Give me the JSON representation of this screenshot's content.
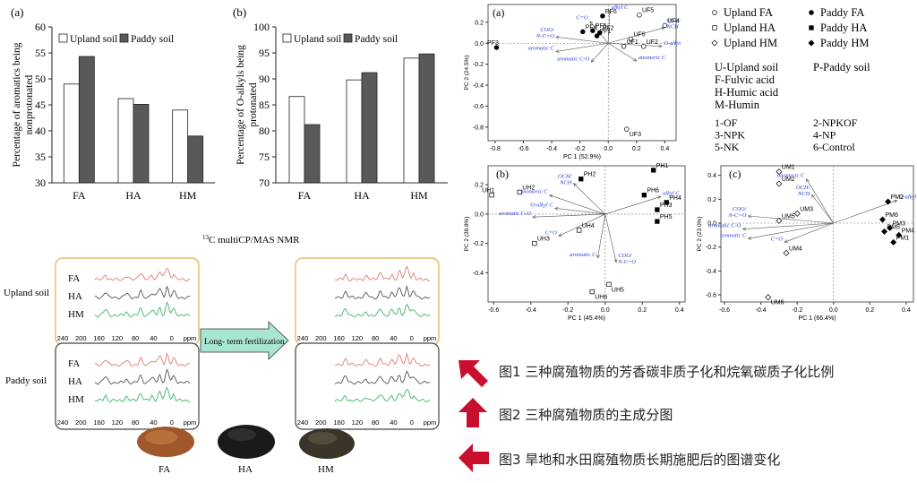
{
  "chart_data": [
    {
      "type": "bar",
      "panel": "(a)",
      "categories": [
        "FA",
        "HA",
        "HM"
      ],
      "series": [
        {
          "name": "Upland soil",
          "values": [
            49.0,
            46.2,
            44.0
          ]
        },
        {
          "name": "Paddy soil",
          "values": [
            54.3,
            45.1,
            39.0
          ]
        }
      ],
      "ylabel": "Percentage of aromatics being nonprotonated",
      "ylim": [
        30,
        60
      ],
      "yticks": [
        30,
        35,
        40,
        45,
        50,
        55,
        60
      ],
      "legend": "top"
    },
    {
      "type": "bar",
      "panel": "(b)",
      "categories": [
        "FA",
        "HA",
        "HM"
      ],
      "series": [
        {
          "name": "Upland soil",
          "values": [
            86.6,
            89.8,
            94.0
          ]
        },
        {
          "name": "Paddy soil",
          "values": [
            81.2,
            91.2,
            94.8
          ]
        }
      ],
      "ylabel": "Percentage of O-alkyls being protonated",
      "ylim": [
        70,
        100
      ],
      "yticks": [
        70,
        75,
        80,
        85,
        90,
        95,
        100
      ],
      "legend": "top"
    },
    {
      "type": "scatter",
      "panel": "(a)",
      "xlabel": "PC 1 (52.9%)",
      "ylabel": "PC 2 (24.5%)",
      "xlim": [
        -0.85,
        0.48
      ],
      "ylim": [
        -0.93,
        0.37
      ],
      "xticks": [
        -0.8,
        -0.6,
        -0.4,
        -0.2,
        0.0,
        0.2,
        0.4
      ],
      "yticks": [
        -0.8,
        -0.6,
        -0.4,
        -0.2,
        0.0,
        0.2
      ],
      "points": [
        {
          "label": "PF6",
          "x": -0.04,
          "y": 0.26,
          "marker": "filled-circle"
        },
        {
          "label": "PF5",
          "x": -0.11,
          "y": 0.12,
          "marker": "filled-circle"
        },
        {
          "label": "PF4",
          "x": -0.18,
          "y": 0.11,
          "marker": "filled-circle"
        },
        {
          "label": "PF1",
          "x": -0.08,
          "y": 0.07,
          "marker": "filled-circle"
        },
        {
          "label": "PF2",
          "x": -0.06,
          "y": 0.1,
          "marker": "filled-circle"
        },
        {
          "label": "PF3",
          "x": -0.79,
          "y": -0.04,
          "marker": "filled-circle"
        },
        {
          "label": "UF5",
          "x": 0.22,
          "y": 0.27,
          "marker": "open-circle"
        },
        {
          "label": "UF4",
          "x": 0.4,
          "y": 0.17,
          "marker": "open-circle"
        },
        {
          "label": "UF6",
          "x": 0.16,
          "y": 0.04,
          "marker": "open-circle"
        },
        {
          "label": "UF1",
          "x": 0.11,
          "y": -0.03,
          "marker": "open-circle"
        },
        {
          "label": "UF2",
          "x": 0.25,
          "y": -0.03,
          "marker": "open-circle"
        },
        {
          "label": "UF3",
          "x": 0.13,
          "y": -0.82,
          "marker": "open-circle"
        }
      ],
      "loadings": [
        {
          "label": "alkyl C",
          "x": 0.01,
          "y": 0.31
        },
        {
          "label": "C=O",
          "x": -0.13,
          "y": 0.21
        },
        {
          "label": "OCH/NCH",
          "x": 0.4,
          "y": 0.15
        },
        {
          "label": "O-alkyl C",
          "x": 0.38,
          "y": -0.03
        },
        {
          "label": "COO/N-C=O",
          "x": -0.37,
          "y": 0.06
        },
        {
          "label": "aromatic C",
          "x": -0.37,
          "y": -0.08
        },
        {
          "label": "aromatic C-O",
          "x": -0.12,
          "y": -0.18
        },
        {
          "label": "anomeric C",
          "x": 0.2,
          "y": -0.17
        }
      ]
    },
    {
      "type": "scatter",
      "panel": "(b)",
      "xlabel": "PC 1 (45.4%)",
      "ylabel": "PC 2 (38.8%)",
      "xlim": [
        -0.63,
        0.43
      ],
      "ylim": [
        -0.6,
        0.33
      ],
      "xticks": [
        -0.6,
        -0.4,
        -0.2,
        0.0,
        0.2,
        0.4
      ],
      "yticks": [
        -0.4,
        -0.2,
        0.0,
        0.2
      ],
      "points": [
        {
          "label": "PH1",
          "x": 0.26,
          "y": 0.3,
          "marker": "filled-square"
        },
        {
          "label": "PH2",
          "x": -0.13,
          "y": 0.24,
          "marker": "filled-square"
        },
        {
          "label": "PH6",
          "x": 0.21,
          "y": 0.13,
          "marker": "filled-square"
        },
        {
          "label": "PH4",
          "x": 0.33,
          "y": 0.08,
          "marker": "filled-square"
        },
        {
          "label": "PH3",
          "x": 0.28,
          "y": 0.03,
          "marker": "filled-square"
        },
        {
          "label": "PH5",
          "x": 0.28,
          "y": -0.05,
          "marker": "filled-square"
        },
        {
          "label": "UH1",
          "x": -0.61,
          "y": 0.13,
          "marker": "open-square"
        },
        {
          "label": "UH2",
          "x": -0.46,
          "y": 0.15,
          "marker": "open-square"
        },
        {
          "label": "UH4",
          "x": -0.14,
          "y": -0.11,
          "marker": "open-square"
        },
        {
          "label": "UH3",
          "x": -0.38,
          "y": -0.2,
          "marker": "open-square"
        },
        {
          "label": "UH5",
          "x": 0.02,
          "y": -0.48,
          "marker": "open-square"
        },
        {
          "label": "UH6",
          "x": -0.07,
          "y": -0.53,
          "marker": "open-square"
        }
      ],
      "loadings": [
        {
          "label": "OCH/NCH",
          "x": -0.17,
          "y": 0.21
        },
        {
          "label": "anomeric C",
          "x": -0.3,
          "y": 0.13
        },
        {
          "label": "alkyl C",
          "x": 0.3,
          "y": 0.12
        },
        {
          "label": "O-alkyl C",
          "x": -0.27,
          "y": 0.04
        },
        {
          "label": "aromatic C-O",
          "x": -0.39,
          "y": -0.02
        },
        {
          "label": "C=O",
          "x": -0.25,
          "y": -0.15
        },
        {
          "label": "aromatic C",
          "x": -0.04,
          "y": -0.3
        },
        {
          "label": "COO/N-C=O",
          "x": 0.06,
          "y": -0.33
        }
      ]
    },
    {
      "type": "scatter",
      "panel": "(c)",
      "xlabel": "PC 1 (66.4%)",
      "ylabel": "PC 2 (23.0%)",
      "xlim": [
        -0.62,
        0.44
      ],
      "ylim": [
        -0.66,
        0.48
      ],
      "xticks": [
        -0.6,
        -0.4,
        -0.2,
        0.0,
        0.2,
        0.4
      ],
      "yticks": [
        -0.6,
        -0.4,
        -0.2,
        0.0,
        0.2,
        0.4
      ],
      "points": [
        {
          "label": "UM1",
          "x": -0.3,
          "y": 0.43,
          "marker": "open-diamond"
        },
        {
          "label": "UM2",
          "x": -0.3,
          "y": 0.33,
          "marker": "open-diamond"
        },
        {
          "label": "UM3",
          "x": -0.2,
          "y": 0.08,
          "marker": "open-diamond"
        },
        {
          "label": "UM5",
          "x": -0.3,
          "y": 0.02,
          "marker": "open-diamond"
        },
        {
          "label": "UM4",
          "x": -0.26,
          "y": -0.25,
          "marker": "open-diamond"
        },
        {
          "label": "UM6",
          "x": -0.36,
          "y": -0.62,
          "marker": "open-diamond"
        },
        {
          "label": "PM2",
          "x": 0.3,
          "y": 0.18,
          "marker": "filled-diamond"
        },
        {
          "label": "PM6",
          "x": 0.27,
          "y": 0.03,
          "marker": "filled-diamond"
        },
        {
          "label": "PM3",
          "x": 0.31,
          "y": -0.04,
          "marker": "filled-diamond"
        },
        {
          "label": "PM5",
          "x": 0.28,
          "y": -0.07,
          "marker": "filled-diamond"
        },
        {
          "label": "PM4",
          "x": 0.36,
          "y": -0.1,
          "marker": "filled-diamond"
        },
        {
          "label": "PM1",
          "x": 0.33,
          "y": -0.16,
          "marker": "filled-diamond"
        }
      ],
      "loadings": [
        {
          "label": "anomeric C",
          "x": -0.15,
          "y": 0.37
        },
        {
          "label": "OCH/NCH",
          "x": -0.12,
          "y": 0.24
        },
        {
          "label": "O-alkyl C",
          "x": 0.35,
          "y": 0.19
        },
        {
          "label": "COO/N-C=O",
          "x": -0.47,
          "y": 0.06
        },
        {
          "label": "aromatic C-O",
          "x": -0.5,
          "y": -0.05
        },
        {
          "label": "aromatic C",
          "x": -0.47,
          "y": -0.13
        },
        {
          "label": "C=O",
          "x": -0.27,
          "y": -0.16
        }
      ]
    }
  ],
  "pca_legend": {
    "symbols": [
      {
        "marker": "open-circle",
        "text": "Upland FA"
      },
      {
        "marker": "filled-circle",
        "text": "Paddy FA"
      },
      {
        "marker": "open-square",
        "text": "Upland HA"
      },
      {
        "marker": "filled-square",
        "text": "Paddy HA"
      },
      {
        "marker": "open-diamond",
        "text": "Upland HM"
      },
      {
        "marker": "filled-diamond",
        "text": "Paddy HM"
      }
    ],
    "abbr": [
      "U-Upland soil",
      "P-Paddy soil",
      "F-Fulvic acid",
      "H-Humic acid",
      "M-Humin"
    ],
    "treatments": [
      "1-OF",
      "2-NPKOF",
      "3-NPK",
      "4-NP",
      "5-NK",
      "6-Control"
    ]
  },
  "nmr": {
    "title_prefix": "13",
    "title_rest": "C multiCP/MAS NMR",
    "row_labels": [
      "Upland soil",
      "Paddy soil"
    ],
    "trace_labels": [
      "FA",
      "HA",
      "HM"
    ],
    "ticks": [
      "240",
      "200",
      "160",
      "120",
      "80",
      "40",
      "0",
      "ppm"
    ],
    "arrow_label": "Long- term fertilization",
    "sample_labels": [
      "FA",
      "HA",
      "HM"
    ],
    "colors": {
      "red": "#e07b72",
      "gray": "#555555",
      "green": "#3fb36b",
      "upland_border": "#e0b24a",
      "paddy_border": "#444444",
      "arrow_fill": "#a8e6cf"
    }
  },
  "captions": [
    {
      "icon": "arrow-upleft",
      "text": "图1 三种腐殖物质的芳香碳非质子化和烷氧碳质子化比例"
    },
    {
      "icon": "arrow-up",
      "text": "图2 三种腐殖物质的主成分图"
    },
    {
      "icon": "arrow-left",
      "text": "图3 旱地和水田腐殖物质长期施肥后的图谱变化"
    }
  ],
  "colors": {
    "bar_paddy": "#595959",
    "bar_upland": "#ffffff",
    "loading_blue": "#2b3fd1",
    "caption_arrow": "#c8102e"
  }
}
